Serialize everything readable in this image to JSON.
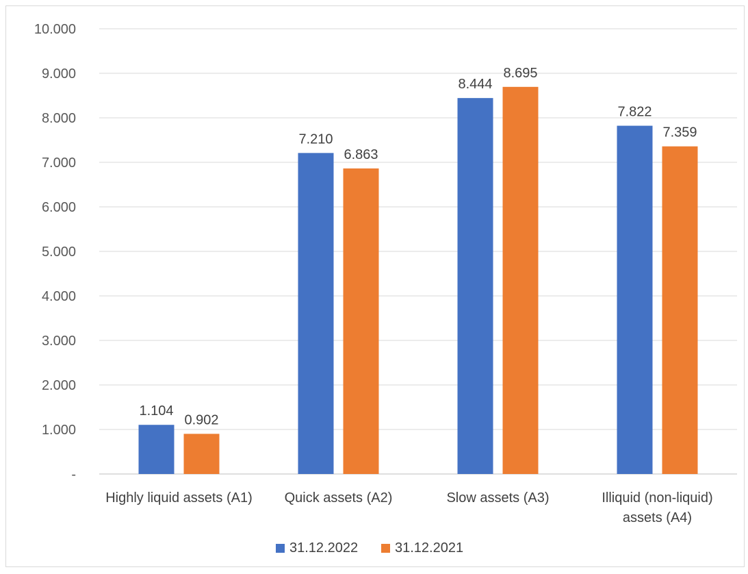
{
  "chart_data": {
    "type": "bar",
    "categories": [
      [
        "Highly liquid assets (A1)"
      ],
      [
        "Quick assets (A2)"
      ],
      [
        "Slow assets (A3)"
      ],
      [
        "Illiquid (non-liquid)",
        "assets (A4)"
      ]
    ],
    "series": [
      {
        "name": "31.12.2022",
        "color": "#4472c4",
        "values": [
          1.104,
          7.21,
          8.444,
          7.822
        ],
        "labels": [
          "1.104",
          "7.210",
          "8.444",
          "7.822"
        ]
      },
      {
        "name": "31.12.2021",
        "color": "#ed7d31",
        "values": [
          0.902,
          6.863,
          8.695,
          7.359
        ],
        "labels": [
          "0.902",
          "6.863",
          "8.695",
          "7.359"
        ]
      }
    ],
    "ylim": [
      0,
      10
    ],
    "yticks": [
      {
        "value": 0,
        "label": "-"
      },
      {
        "value": 1,
        "label": "1.000"
      },
      {
        "value": 2,
        "label": "2.000"
      },
      {
        "value": 3,
        "label": "3.000"
      },
      {
        "value": 4,
        "label": "4.000"
      },
      {
        "value": 5,
        "label": "5.000"
      },
      {
        "value": 6,
        "label": "6.000"
      },
      {
        "value": 7,
        "label": "7.000"
      },
      {
        "value": 8,
        "label": "8.000"
      },
      {
        "value": 9,
        "label": "9.000"
      },
      {
        "value": 10,
        "label": "10.000"
      }
    ],
    "grid": true,
    "legend_position": "bottom",
    "title": "",
    "xlabel": "",
    "ylabel": ""
  }
}
